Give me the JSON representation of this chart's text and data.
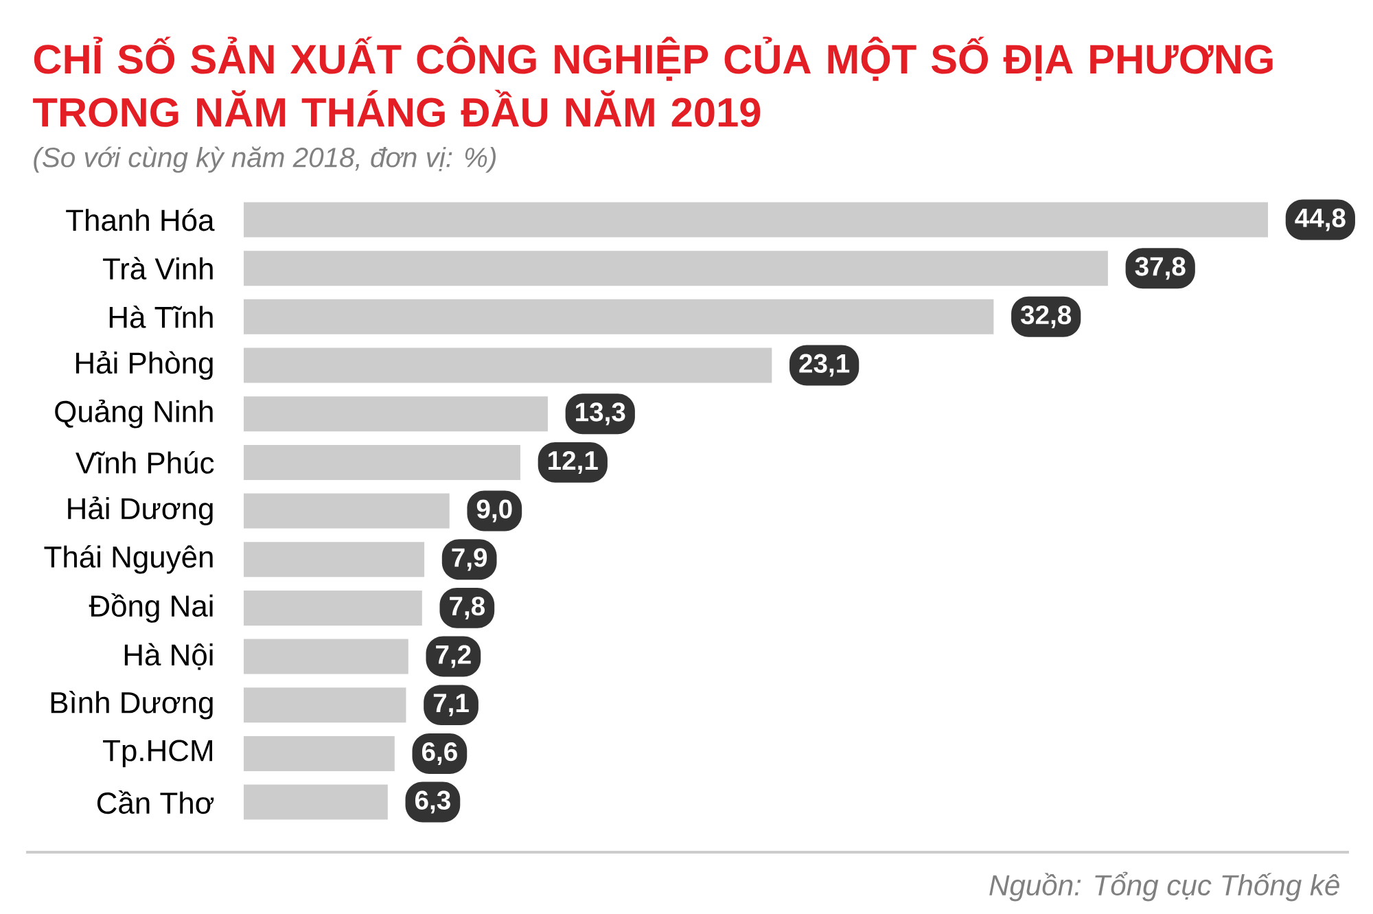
{
  "chart_data": {
    "type": "bar",
    "orientation": "horizontal",
    "title": "CHỈ SỐ SẢN XUẤT CÔNG NGHIỆP CỦA MỘT SỐ ĐỊA PHƯƠNG TRONG NĂM THÁNG ĐẦU NĂM 2019",
    "subtitle": "(So với cùng kỳ năm 2018, đơn vị: %)",
    "categories": [
      "Thanh Hóa",
      "Trà Vinh",
      "Hà Tĩnh",
      "Hải Phòng",
      "Quảng Ninh",
      "Vĩnh Phúc",
      "Hải Dương",
      "Thái Nguyên",
      "Đồng Nai",
      "Hà Nội",
      "Bình Dương",
      "Tp.HCM",
      "Cần Thơ"
    ],
    "values": [
      44.8,
      37.8,
      32.8,
      23.1,
      13.3,
      12.1,
      9.0,
      7.9,
      7.8,
      7.2,
      7.1,
      6.6,
      6.3
    ],
    "value_labels": [
      "44,8",
      "37,8",
      "32,8",
      "23,1",
      "13,3",
      "12,1",
      "9,0",
      "7,9",
      "7,8",
      "7,2",
      "7,1",
      "6,6",
      "6,3"
    ],
    "color": "#cccccc",
    "annotations": [
      "Nguồn: Tổng cục Thống kê"
    ]
  }
}
